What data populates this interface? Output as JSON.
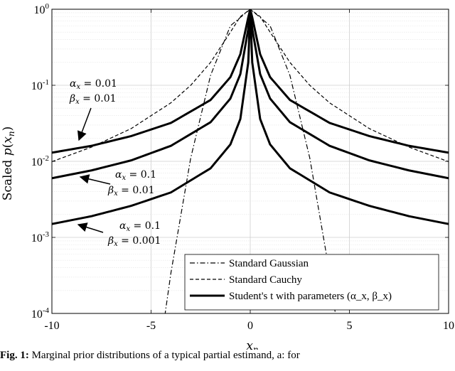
{
  "chart_data": {
    "type": "line",
    "title": "",
    "xlabel": "x_n",
    "ylabel": "Scaled p(x_n)",
    "yscale": "log",
    "xlim": [
      -10,
      10
    ],
    "ylim": [
      0.0001,
      1
    ],
    "x_ticks": [
      "-10",
      "-5",
      "0",
      "5",
      "10"
    ],
    "y_ticks": [
      {
        "base": "10",
        "exp": "-4"
      },
      {
        "base": "10",
        "exp": "-3"
      },
      {
        "base": "10",
        "exp": "-2"
      },
      {
        "base": "10",
        "exp": "-1"
      },
      {
        "base": "10",
        "exp": "0"
      }
    ],
    "grid": true,
    "legend_position": "bottom-right",
    "legend": [
      {
        "label": "Standard Gaussian",
        "style": "dashdot"
      },
      {
        "label": "Standard Cauchy",
        "style": "dashed"
      },
      {
        "label": "Student's t with parameters (α_x, β_x)",
        "style": "solid-thick"
      }
    ],
    "series": [
      {
        "kind": "gaussian",
        "style": "dashdot",
        "x": [
          -10,
          -4.29,
          -4,
          -3,
          -2,
          -1,
          0,
          1,
          2,
          3,
          4,
          4.29,
          10
        ],
        "y": [
          0.0,
          0.0001,
          0.00034,
          0.0111,
          0.135,
          0.607,
          1.0,
          0.607,
          0.135,
          0.0111,
          0.00034,
          0.0001,
          0.0
        ]
      },
      {
        "kind": "cauchy",
        "style": "dashed",
        "x": [
          -10,
          -8,
          -6,
          -4,
          -3,
          -2,
          -1,
          -0.5,
          0,
          0.5,
          1,
          2,
          3,
          4,
          6,
          8,
          10
        ],
        "y": [
          0.0099,
          0.0154,
          0.027,
          0.0588,
          0.1,
          0.2,
          0.5,
          0.8,
          1.0,
          0.8,
          0.5,
          0.2,
          0.1,
          0.0588,
          0.027,
          0.0154,
          0.0099
        ]
      },
      {
        "kind": "student-t",
        "style": "solid-thick",
        "params": {
          "alpha": "α_x = 0.01",
          "beta": "β_x = 0.01"
        },
        "x": [
          -10,
          -8,
          -6,
          -4,
          -2,
          -1,
          -0.5,
          -0.1,
          0,
          0.1,
          0.5,
          1,
          2,
          4,
          6,
          8,
          10
        ],
        "y": [
          0.013,
          0.016,
          0.0215,
          0.032,
          0.0641,
          0.128,
          0.256,
          0.781,
          1.0,
          0.781,
          0.256,
          0.128,
          0.0641,
          0.032,
          0.0215,
          0.016,
          0.013
        ]
      },
      {
        "kind": "student-t",
        "style": "solid-thick",
        "params": {
          "alpha": "α_x = 0.1",
          "beta": "β_x = 0.01"
        },
        "x": [
          -10,
          -8,
          -6,
          -4,
          -2,
          -1,
          -0.5,
          -0.1,
          0,
          0.1,
          0.5,
          1,
          2,
          4,
          6,
          8,
          10
        ],
        "y": [
          0.006,
          0.0076,
          0.0103,
          0.016,
          0.0327,
          0.067,
          0.14,
          0.55,
          1.0,
          0.55,
          0.14,
          0.067,
          0.0327,
          0.016,
          0.0103,
          0.0076,
          0.006
        ]
      },
      {
        "kind": "student-t",
        "style": "solid-thick",
        "params": {
          "alpha": "α_x = 0.1",
          "beta": "β_x = 0.001"
        },
        "x": [
          -10,
          -8,
          -6,
          -4,
          -2,
          -1,
          -0.5,
          -0.1,
          0,
          0.1,
          0.5,
          1,
          2,
          4,
          6,
          8,
          10
        ],
        "y": [
          0.0015,
          0.0019,
          0.0026,
          0.0039,
          0.0081,
          0.0167,
          0.036,
          0.2,
          1.0,
          0.2,
          0.036,
          0.0167,
          0.0081,
          0.0039,
          0.0026,
          0.0019,
          0.0015
        ]
      }
    ]
  },
  "caption": {
    "label": "Fig. 1:",
    "text": "Marginal prior distributions of a typical partial estimand, a: for"
  }
}
